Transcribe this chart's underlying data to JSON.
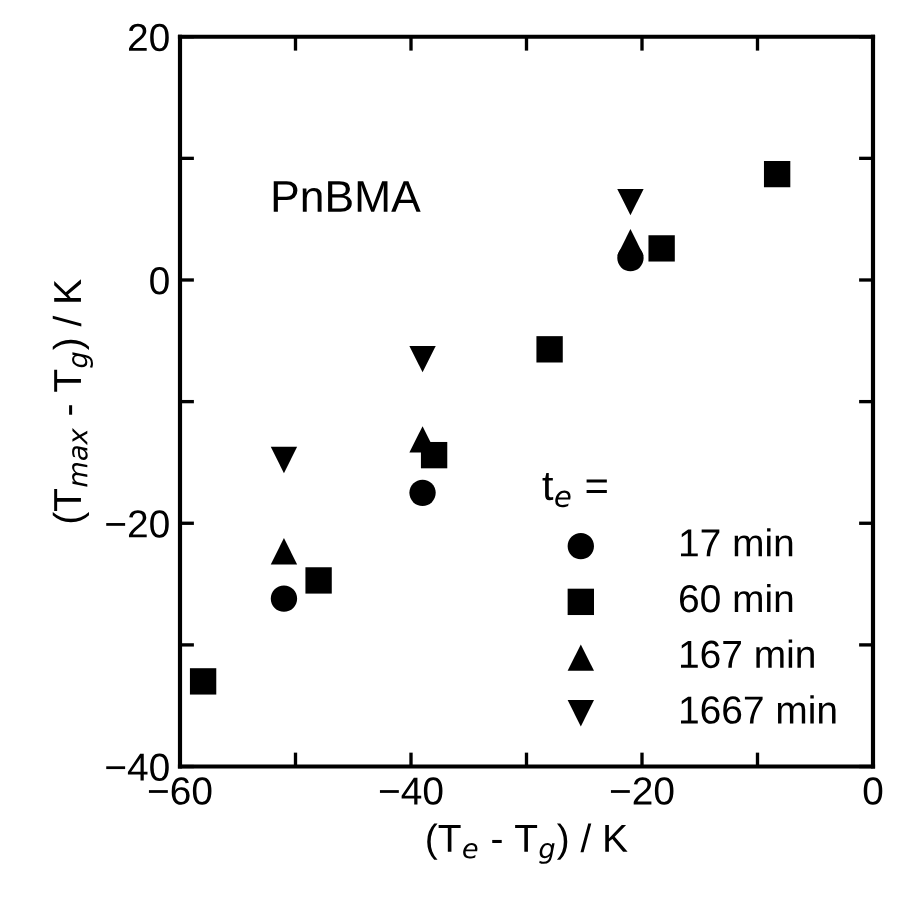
{
  "chart_data": {
    "type": "scatter",
    "xlabel": "(T$_{e}$ - T$_{g}$) / K",
    "ylabel": "(T$_{max}$ - T$_{g}$) / K",
    "legend_title": "t$_{e}$ =",
    "annotations": [
      "PnBMA"
    ],
    "xlim": [
      -60,
      0
    ],
    "ylim": [
      -40,
      20
    ],
    "xticks": [
      -60,
      {
        "value": -50,
        "label": null
      },
      -40,
      {
        "value": -30,
        "label": null
      },
      -20,
      {
        "value": -10,
        "label": null
      },
      0
    ],
    "yticks": [
      -40,
      {
        "value": -30,
        "label": null
      },
      -20,
      {
        "value": -10,
        "label": null
      },
      0,
      {
        "value": 10,
        "label": null
      },
      20
    ],
    "grid": false,
    "legend": "bottom right",
    "series": [
      {
        "name": "17 min",
        "color": "#000000",
        "marker": "circle",
        "x": [
          -51,
          -39,
          -21
        ],
        "values": [
          -26.2,
          -17.5,
          1.8
        ]
      },
      {
        "name": "60 min",
        "color": "#000000",
        "marker": "square",
        "x": [
          -58,
          -48,
          -38,
          -28,
          -18.3,
          -8.3
        ],
        "values": [
          -33,
          -24.7,
          -14.4,
          -5.7,
          2.6,
          8.7
        ]
      },
      {
        "name": "167 min",
        "color": "#000000",
        "marker": "triangle",
        "x": [
          -51,
          -39,
          -21
        ],
        "values": [
          -22.3,
          -13.1,
          3.1
        ]
      },
      {
        "name": "1667 min",
        "color": "#000000",
        "marker": "triangle_down",
        "x": [
          -51,
          -39,
          -21
        ],
        "values": [
          -14.8,
          -6.5,
          6.4
        ]
      }
    ]
  }
}
